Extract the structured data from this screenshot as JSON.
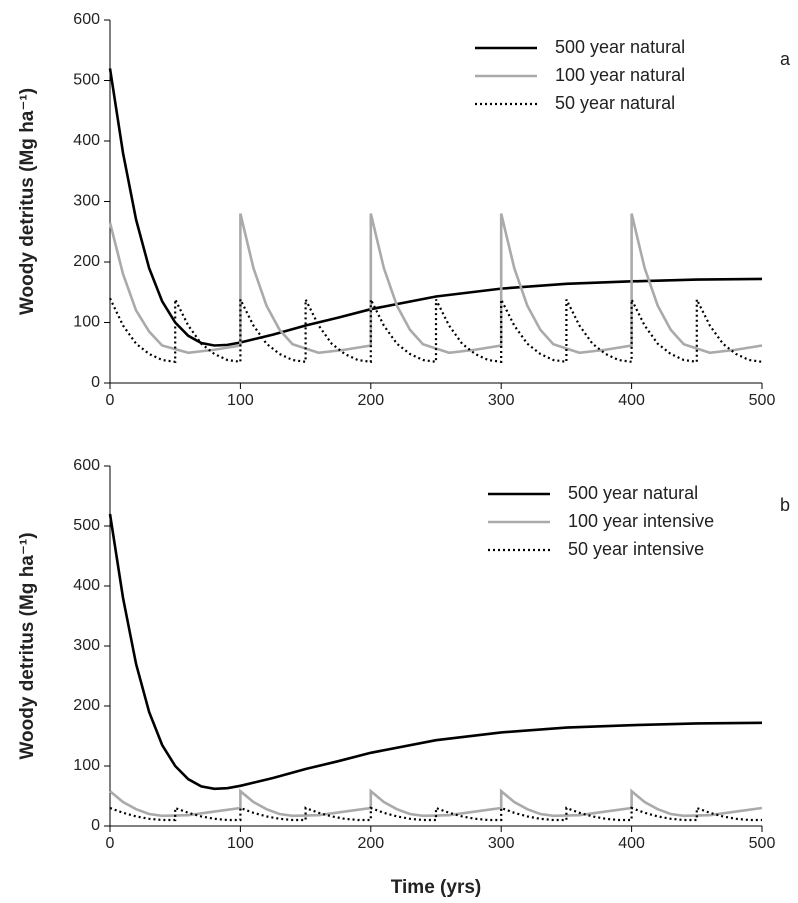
{
  "chart_data": [
    {
      "type": "line",
      "ylabel": "Woody detritus (Mg ha⁻¹)",
      "panel_label": "a",
      "xlim": [
        0,
        500
      ],
      "xticks": [
        0,
        100,
        200,
        300,
        400,
        500
      ],
      "ylim": [
        0,
        600
      ],
      "yticks": [
        0,
        100,
        200,
        300,
        400,
        500,
        600
      ],
      "legend": "upper right",
      "series": [
        {
          "name": "500 year natural",
          "color": "#000000",
          "linestyle": "solid",
          "x": [
            0,
            10,
            20,
            30,
            40,
            50,
            60,
            70,
            80,
            90,
            100,
            125,
            150,
            175,
            200,
            250,
            300,
            350,
            400,
            450,
            500
          ],
          "values": [
            520,
            380,
            270,
            190,
            135,
            100,
            78,
            66,
            62,
            63,
            67,
            80,
            95,
            108,
            122,
            143,
            156,
            164,
            168,
            171,
            172
          ]
        },
        {
          "name": "100 year natural",
          "color": "#aaaaaa",
          "linestyle": "solid",
          "x": [
            0,
            10,
            20,
            30,
            40,
            60,
            80,
            100,
            100,
            110,
            120,
            130,
            140,
            160,
            180,
            200,
            200,
            210,
            220,
            230,
            240,
            260,
            280,
            300,
            300,
            310,
            320,
            330,
            340,
            360,
            380,
            400,
            400,
            410,
            420,
            430,
            440,
            460,
            480,
            500
          ],
          "values": [
            265,
            180,
            120,
            85,
            62,
            50,
            55,
            62,
            280,
            190,
            128,
            88,
            64,
            50,
            55,
            62,
            280,
            190,
            128,
            88,
            64,
            50,
            55,
            62,
            280,
            190,
            128,
            88,
            64,
            50,
            55,
            62,
            280,
            190,
            128,
            88,
            64,
            50,
            55,
            62
          ]
        },
        {
          "name": "50 year natural",
          "color": "#000000",
          "linestyle": "dotted",
          "x": [
            0,
            10,
            20,
            30,
            40,
            50,
            50,
            60,
            70,
            80,
            90,
            100,
            100,
            110,
            120,
            130,
            140,
            150,
            150,
            160,
            170,
            180,
            190,
            200,
            200,
            210,
            220,
            230,
            240,
            250,
            250,
            260,
            270,
            280,
            290,
            300,
            300,
            310,
            320,
            330,
            340,
            350,
            350,
            360,
            370,
            380,
            390,
            400,
            400,
            410,
            420,
            430,
            440,
            450,
            450,
            460,
            470,
            480,
            490,
            500
          ],
          "values": [
            140,
            95,
            65,
            48,
            38,
            35,
            138,
            95,
            65,
            48,
            38,
            35,
            138,
            95,
            65,
            48,
            38,
            35,
            138,
            95,
            65,
            48,
            38,
            35,
            138,
            95,
            65,
            48,
            38,
            35,
            138,
            95,
            65,
            48,
            38,
            35,
            138,
            95,
            65,
            48,
            38,
            35,
            138,
            95,
            65,
            48,
            38,
            35,
            138,
            95,
            65,
            48,
            38,
            35,
            138,
            95,
            65,
            48,
            38,
            35
          ]
        }
      ]
    },
    {
      "type": "line",
      "ylabel": "Woody detritus (Mg ha⁻¹)",
      "xlabel": "Time (yrs)",
      "panel_label": "b",
      "xlim": [
        0,
        500
      ],
      "xticks": [
        0,
        100,
        200,
        300,
        400,
        500
      ],
      "ylim": [
        0,
        600
      ],
      "yticks": [
        0,
        100,
        200,
        300,
        400,
        500,
        600
      ],
      "legend": "upper right",
      "series": [
        {
          "name": "500 year natural",
          "color": "#000000",
          "linestyle": "solid",
          "x": [
            0,
            10,
            20,
            30,
            40,
            50,
            60,
            70,
            80,
            90,
            100,
            125,
            150,
            175,
            200,
            250,
            300,
            350,
            400,
            450,
            500
          ],
          "values": [
            520,
            380,
            270,
            190,
            135,
            100,
            78,
            66,
            62,
            63,
            67,
            80,
            95,
            108,
            122,
            143,
            156,
            164,
            168,
            171,
            172
          ]
        },
        {
          "name": "100 year intensive",
          "color": "#aaaaaa",
          "linestyle": "solid",
          "x": [
            0,
            10,
            20,
            30,
            40,
            60,
            80,
            100,
            100,
            110,
            120,
            130,
            140,
            160,
            180,
            200,
            200,
            210,
            220,
            230,
            240,
            260,
            280,
            300,
            300,
            310,
            320,
            330,
            340,
            360,
            380,
            400,
            400,
            410,
            420,
            430,
            440,
            460,
            480,
            500
          ],
          "values": [
            58,
            40,
            28,
            20,
            17,
            18,
            24,
            30,
            58,
            40,
            28,
            20,
            17,
            18,
            24,
            30,
            58,
            40,
            28,
            20,
            17,
            18,
            24,
            30,
            58,
            40,
            28,
            20,
            17,
            18,
            24,
            30,
            58,
            40,
            28,
            20,
            17,
            18,
            24,
            30
          ]
        },
        {
          "name": "50 year intensive",
          "color": "#000000",
          "linestyle": "dotted",
          "x": [
            0,
            10,
            20,
            30,
            40,
            50,
            50,
            60,
            70,
            80,
            90,
            100,
            100,
            110,
            120,
            130,
            140,
            150,
            150,
            160,
            170,
            180,
            190,
            200,
            200,
            210,
            220,
            230,
            240,
            250,
            250,
            260,
            270,
            280,
            290,
            300,
            300,
            310,
            320,
            330,
            340,
            350,
            350,
            360,
            370,
            380,
            390,
            400,
            400,
            410,
            420,
            430,
            440,
            450,
            450,
            460,
            470,
            480,
            490,
            500
          ],
          "values": [
            30,
            22,
            16,
            12,
            10,
            10,
            30,
            22,
            16,
            12,
            10,
            10,
            30,
            22,
            16,
            12,
            10,
            10,
            30,
            22,
            16,
            12,
            10,
            10,
            30,
            22,
            16,
            12,
            10,
            10,
            30,
            22,
            16,
            12,
            10,
            10,
            30,
            22,
            16,
            12,
            10,
            10,
            30,
            22,
            16,
            12,
            10,
            10,
            30,
            22,
            16,
            12,
            10,
            10,
            30,
            22,
            16,
            12,
            10,
            10
          ]
        }
      ]
    }
  ]
}
